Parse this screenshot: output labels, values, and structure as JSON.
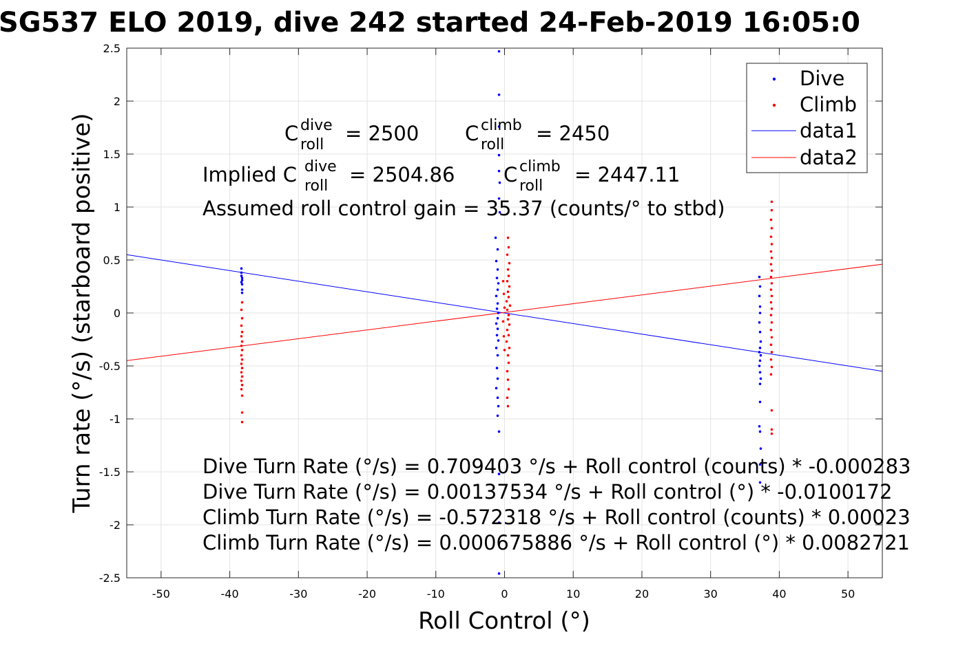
{
  "chart_data": {
    "type": "scatter",
    "title": "SG537 ELO 2019, dive 242 started 24-Feb-2019 16:05:0",
    "xlabel": "Roll Control (°)",
    "ylabel": "Turn rate (°/s) (starboard positive)",
    "xlim": [
      -55,
      55
    ],
    "ylim": [
      -2.5,
      2.5
    ],
    "x_ticks": [
      -50,
      -40,
      -30,
      -20,
      -10,
      0,
      10,
      20,
      30,
      40,
      50
    ],
    "y_ticks": [
      -2.5,
      -2,
      -1.5,
      -1,
      -0.5,
      0,
      0.5,
      1,
      1.5,
      2,
      2.5
    ],
    "x_tick_labels": [
      "-50",
      "-40",
      "-30",
      "-20",
      "-10",
      "0",
      "10",
      "20",
      "30",
      "40",
      "50"
    ],
    "y_tick_labels": [
      "-2.5",
      "-2",
      "-1.5",
      "-1",
      "-0.5",
      "0",
      "0.5",
      "1",
      "1.5",
      "2",
      "2.5"
    ],
    "grid": true,
    "legend_position": "top-right",
    "series": [
      {
        "name": "Dive",
        "kind": "points",
        "color": "#0000ff",
        "points": [
          [
            -38.3,
            0.42
          ],
          [
            -38.3,
            0.38
          ],
          [
            -38.3,
            0.35
          ],
          [
            -38.2,
            0.33
          ],
          [
            -38.2,
            0.31
          ],
          [
            -38.3,
            0.29
          ],
          [
            -38.2,
            0.27
          ],
          [
            -38.2,
            0.22
          ],
          [
            -38.2,
            0.19
          ],
          [
            -0.8,
            2.47
          ],
          [
            -0.8,
            2.06
          ],
          [
            -0.8,
            1.76
          ],
          [
            -0.8,
            1.49
          ],
          [
            -0.8,
            1.34
          ],
          [
            -0.7,
            1.23
          ],
          [
            -0.8,
            1.08
          ],
          [
            -0.7,
            0.95
          ],
          [
            -1.3,
            0.71
          ],
          [
            -1.0,
            0.6
          ],
          [
            -1.2,
            0.49
          ],
          [
            -1.0,
            0.41
          ],
          [
            -1.1,
            0.33
          ],
          [
            -0.9,
            0.28
          ],
          [
            -1.0,
            0.22
          ],
          [
            -1.2,
            0.16
          ],
          [
            -1.0,
            0.09
          ],
          [
            -1.1,
            0.04
          ],
          [
            -0.9,
            0.0
          ],
          [
            -1.0,
            -0.05
          ],
          [
            -1.2,
            -0.1
          ],
          [
            -1.0,
            -0.15
          ],
          [
            -1.1,
            -0.21
          ],
          [
            -0.9,
            -0.26
          ],
          [
            -1.2,
            -0.33
          ],
          [
            -1.0,
            -0.4
          ],
          [
            -1.1,
            -0.52
          ],
          [
            -1.0,
            -0.62
          ],
          [
            -1.2,
            -0.71
          ],
          [
            -1.0,
            -0.8
          ],
          [
            -0.9,
            -0.88
          ],
          [
            -1.0,
            -0.97
          ],
          [
            -0.8,
            -1.12
          ],
          [
            -0.8,
            -1.52
          ],
          [
            -0.8,
            -1.98
          ],
          [
            -0.8,
            -2.46
          ],
          [
            37.1,
            0.34
          ],
          [
            37.2,
            0.25
          ],
          [
            37.1,
            0.16
          ],
          [
            37.2,
            0.06
          ],
          [
            37.2,
            0.0
          ],
          [
            37.1,
            -0.09
          ],
          [
            37.2,
            -0.18
          ],
          [
            37.3,
            -0.27
          ],
          [
            37.2,
            -0.33
          ],
          [
            37.1,
            -0.37
          ],
          [
            37.3,
            -0.4
          ],
          [
            37.2,
            -0.45
          ],
          [
            37.1,
            -0.5
          ],
          [
            37.2,
            -0.56
          ],
          [
            37.3,
            -0.62
          ],
          [
            37.2,
            -0.67
          ],
          [
            37.2,
            -0.84
          ],
          [
            37.1,
            -1.07
          ],
          [
            37.2,
            -1.12
          ],
          [
            37.3,
            -1.28
          ],
          [
            37.2,
            -1.43
          ],
          [
            37.2,
            -1.6
          ]
        ]
      },
      {
        "name": "Climb",
        "kind": "points",
        "color": "#ff0000",
        "points": [
          [
            -38.2,
            0.1
          ],
          [
            -38.3,
            0.03
          ],
          [
            -38.2,
            -0.05
          ],
          [
            -38.3,
            -0.12
          ],
          [
            -38.2,
            -0.18
          ],
          [
            -38.3,
            -0.22
          ],
          [
            -38.2,
            -0.27
          ],
          [
            -38.3,
            -0.31
          ],
          [
            -38.2,
            -0.35
          ],
          [
            -38.3,
            -0.4
          ],
          [
            -38.2,
            -0.44
          ],
          [
            -38.3,
            -0.48
          ],
          [
            -38.2,
            -0.52
          ],
          [
            -38.3,
            -0.56
          ],
          [
            -38.2,
            -0.6
          ],
          [
            -38.3,
            -0.64
          ],
          [
            -38.2,
            -0.68
          ],
          [
            -38.3,
            -0.72
          ],
          [
            -38.2,
            -0.78
          ],
          [
            -38.2,
            -0.94
          ],
          [
            -38.2,
            -1.03
          ],
          [
            0.5,
            0.71
          ],
          [
            0.6,
            0.62
          ],
          [
            0.4,
            0.55
          ],
          [
            0.7,
            0.47
          ],
          [
            0.5,
            0.41
          ],
          [
            0.6,
            0.35
          ],
          [
            0.4,
            0.3
          ],
          [
            0.7,
            0.25
          ],
          [
            0.5,
            0.2
          ],
          [
            0.6,
            0.15
          ],
          [
            0.3,
            0.11
          ],
          [
            0.8,
            0.07
          ],
          [
            0.4,
            0.03
          ],
          [
            0.6,
            -0.02
          ],
          [
            0.5,
            -0.06
          ],
          [
            0.7,
            -0.11
          ],
          [
            0.4,
            -0.16
          ],
          [
            0.6,
            -0.21
          ],
          [
            0.3,
            -0.27
          ],
          [
            0.7,
            -0.33
          ],
          [
            0.5,
            -0.4
          ],
          [
            0.6,
            -0.47
          ],
          [
            0.4,
            -0.55
          ],
          [
            0.5,
            -0.63
          ],
          [
            0.6,
            -0.72
          ],
          [
            0.4,
            -0.8
          ],
          [
            0.5,
            -0.88
          ],
          [
            -0.2,
            0.3
          ],
          [
            -0.1,
            0.18
          ],
          [
            0.0,
            0.05
          ],
          [
            -0.2,
            -0.08
          ],
          [
            -0.1,
            -0.22
          ],
          [
            0.0,
            -0.35
          ],
          [
            38.9,
            1.05
          ],
          [
            38.9,
            0.97
          ],
          [
            38.8,
            0.88
          ],
          [
            38.9,
            0.8
          ],
          [
            38.8,
            0.72
          ],
          [
            38.9,
            0.65
          ],
          [
            38.8,
            0.58
          ],
          [
            38.9,
            0.52
          ],
          [
            38.8,
            0.46
          ],
          [
            38.9,
            0.4
          ],
          [
            38.8,
            0.34
          ],
          [
            38.9,
            0.28
          ],
          [
            38.8,
            0.22
          ],
          [
            38.9,
            0.16
          ],
          [
            38.8,
            0.1
          ],
          [
            38.9,
            0.04
          ],
          [
            38.8,
            -0.02
          ],
          [
            38.9,
            -0.09
          ],
          [
            38.8,
            -0.16
          ],
          [
            38.9,
            -0.23
          ],
          [
            38.8,
            -0.3
          ],
          [
            38.9,
            -0.37
          ],
          [
            38.8,
            -0.44
          ],
          [
            38.9,
            -0.51
          ],
          [
            38.8,
            -0.58
          ],
          [
            38.9,
            -0.92
          ],
          [
            38.9,
            -1.1
          ],
          [
            38.9,
            -1.14
          ]
        ]
      },
      {
        "name": "data1",
        "kind": "line",
        "color": "#0000ff",
        "x": [
          -55,
          55
        ],
        "y": [
          0.55,
          -0.55
        ]
      },
      {
        "name": "data2",
        "kind": "line",
        "color": "#ff0000",
        "x": [
          -55,
          55
        ],
        "y": [
          -0.45,
          0.46
        ]
      }
    ],
    "annotations": {
      "c_roll_dive": {
        "prefix": "C",
        "sup": "dive",
        "sub": "roll",
        "value": "= 2500"
      },
      "c_roll_climb": {
        "prefix": "C",
        "sup": "climb",
        "sub": "roll",
        "value": "= 2450"
      },
      "implied_dive": {
        "prefix": "Implied C",
        "sup": "dive",
        "sub": "roll",
        "value": "= 2504.86"
      },
      "implied_climb": {
        "prefix": "C",
        "sup": "climb",
        "sub": "roll",
        "value": "= 2447.11"
      },
      "gain_line": "Assumed roll control gain = 35.37 (counts/° to stbd)",
      "fit_lines": [
        "Dive Turn Rate (°/s) = 0.709403 °/s + Roll control (counts) * -0.000283",
        "Dive Turn Rate (°/s) = 0.00137534 °/s + Roll control (°) * -0.0100172",
        "Climb Turn Rate (°/s) = -0.572318 °/s + Roll control (counts) * 0.00023",
        "Climb Turn Rate (°/s) = 0.000675886 °/s + Roll control (°) * 0.0082721"
      ]
    }
  }
}
